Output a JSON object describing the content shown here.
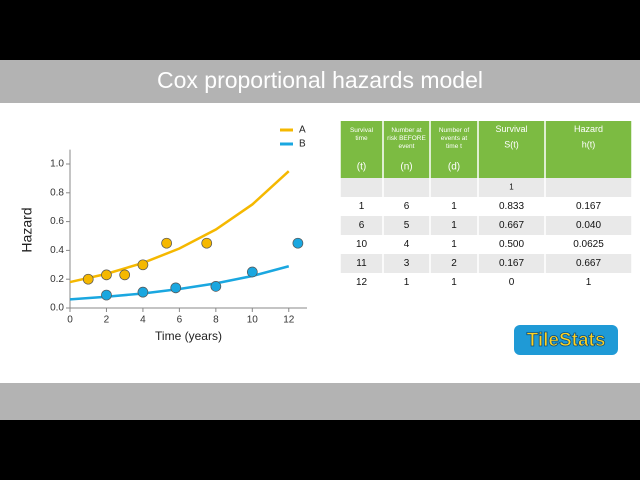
{
  "header": {
    "title": "Cox proportional hazards model"
  },
  "chart_data": {
    "type": "scatter",
    "xlabel": "Time (years)",
    "ylabel": "Hazard",
    "xlim": [
      0,
      13
    ],
    "xticks": [
      0,
      2,
      4,
      6,
      8,
      10,
      12
    ],
    "ylim": [
      0,
      1.1
    ],
    "yticks": [
      {
        "value": 0,
        "label": "0.0"
      },
      0.2,
      0.4,
      0.6,
      0.8,
      {
        "value": 1,
        "label": "1.0"
      }
    ],
    "legend": "top-right",
    "series": [
      {
        "name": "A",
        "color": "#f5b800",
        "x": [
          1,
          2,
          3,
          4,
          5.3,
          7.5
        ],
        "values": [
          0.2,
          0.23,
          0.23,
          0.3,
          0.45,
          0.45
        ],
        "fit": {
          "x": [
            0,
            2,
            4,
            6,
            8,
            10,
            12
          ],
          "values": [
            0.18,
            0.237,
            0.313,
            0.413,
            0.545,
            0.719,
            0.95
          ]
        }
      },
      {
        "name": "B",
        "color": "#1aa7e0",
        "x": [
          2,
          4,
          5.8,
          8,
          10,
          12.5
        ],
        "values": [
          0.09,
          0.11,
          0.14,
          0.15,
          0.25,
          0.45
        ],
        "fit": {
          "x": [
            0,
            2,
            4,
            6,
            8,
            10,
            12
          ],
          "values": [
            0.06,
            0.078,
            0.101,
            0.132,
            0.171,
            0.222,
            0.29
          ]
        }
      }
    ]
  },
  "table": {
    "header": [
      {
        "label": "Survival time",
        "symbol": "(t)"
      },
      {
        "label": "Number at risk BEFORE event",
        "symbol": "(n)"
      },
      {
        "label": "Number of events at time t",
        "symbol": "(d)"
      },
      {
        "label": "Survival",
        "symbol": "S(t)"
      },
      {
        "label": "Hazard",
        "symbol": "h(t)"
      }
    ],
    "rows": [
      [
        null,
        null,
        null,
        "1",
        null
      ],
      [
        "1",
        "6",
        "1",
        "0.833",
        "0.167"
      ],
      [
        "6",
        "5",
        "1",
        "0.667",
        "0.040"
      ],
      [
        "10",
        "4",
        "1",
        "0.500",
        "0.0625"
      ],
      [
        "11",
        "3",
        "2",
        "0.167",
        "0.667"
      ],
      [
        "12",
        "1",
        "1",
        "0",
        "1"
      ]
    ]
  },
  "logo": "TileStats"
}
